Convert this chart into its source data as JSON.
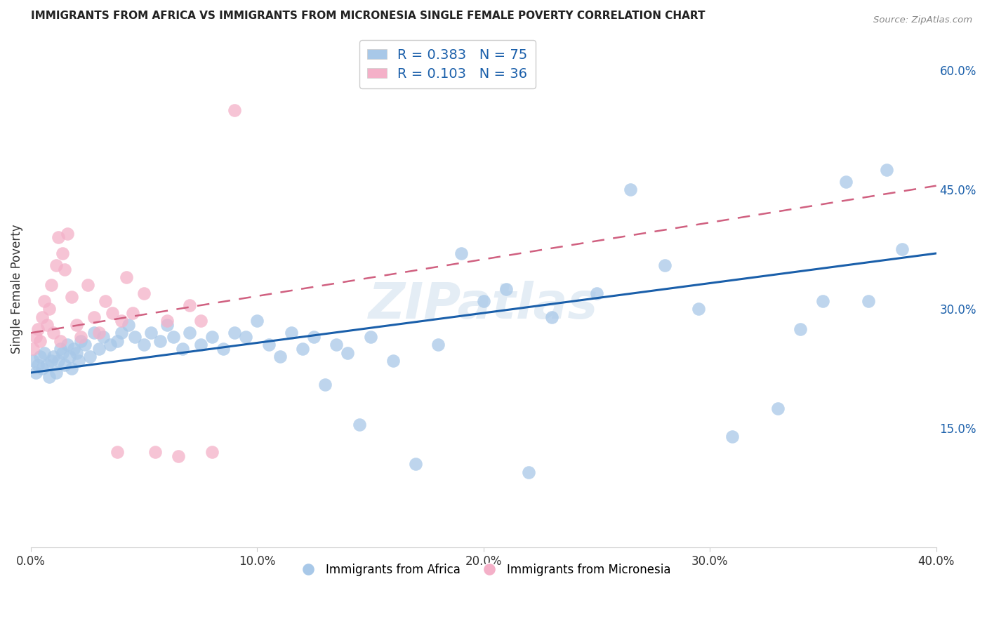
{
  "title": "IMMIGRANTS FROM AFRICA VS IMMIGRANTS FROM MICRONESIA SINGLE FEMALE POVERTY CORRELATION CHART",
  "source": "Source: ZipAtlas.com",
  "ylabel": "Single Female Poverty",
  "xlim": [
    0.0,
    0.4
  ],
  "ylim": [
    0.0,
    0.65
  ],
  "africa_R": 0.383,
  "africa_N": 75,
  "micronesia_R": 0.103,
  "micronesia_N": 36,
  "africa_color": "#a8c8e8",
  "micronesia_color": "#f4b0c8",
  "africa_line_color": "#1a5faa",
  "micronesia_line_color": "#d06080",
  "legend_text_color": "#1a5faa",
  "legend_label_color": "#333333",
  "watermark": "ZIPatlas",
  "africa_x": [
    0.001,
    0.002,
    0.003,
    0.004,
    0.005,
    0.006,
    0.007,
    0.008,
    0.009,
    0.01,
    0.011,
    0.012,
    0.013,
    0.014,
    0.015,
    0.016,
    0.017,
    0.018,
    0.019,
    0.02,
    0.021,
    0.022,
    0.024,
    0.026,
    0.028,
    0.03,
    0.032,
    0.035,
    0.038,
    0.04,
    0.043,
    0.046,
    0.05,
    0.053,
    0.057,
    0.06,
    0.063,
    0.067,
    0.07,
    0.075,
    0.08,
    0.085,
    0.09,
    0.095,
    0.1,
    0.105,
    0.11,
    0.115,
    0.12,
    0.125,
    0.13,
    0.135,
    0.14,
    0.145,
    0.15,
    0.16,
    0.17,
    0.18,
    0.19,
    0.2,
    0.21,
    0.22,
    0.23,
    0.25,
    0.265,
    0.28,
    0.295,
    0.31,
    0.33,
    0.34,
    0.35,
    0.36,
    0.37,
    0.378,
    0.385
  ],
  "africa_y": [
    0.235,
    0.22,
    0.23,
    0.24,
    0.225,
    0.245,
    0.23,
    0.215,
    0.235,
    0.24,
    0.22,
    0.235,
    0.25,
    0.245,
    0.23,
    0.255,
    0.24,
    0.225,
    0.25,
    0.245,
    0.235,
    0.26,
    0.255,
    0.24,
    0.27,
    0.25,
    0.265,
    0.255,
    0.26,
    0.27,
    0.28,
    0.265,
    0.255,
    0.27,
    0.26,
    0.28,
    0.265,
    0.25,
    0.27,
    0.255,
    0.265,
    0.25,
    0.27,
    0.265,
    0.285,
    0.255,
    0.24,
    0.27,
    0.25,
    0.265,
    0.205,
    0.255,
    0.245,
    0.155,
    0.265,
    0.235,
    0.105,
    0.255,
    0.37,
    0.31,
    0.325,
    0.095,
    0.29,
    0.32,
    0.45,
    0.355,
    0.3,
    0.14,
    0.175,
    0.275,
    0.31,
    0.46,
    0.31,
    0.475,
    0.375
  ],
  "micronesia_x": [
    0.001,
    0.002,
    0.003,
    0.004,
    0.005,
    0.006,
    0.007,
    0.008,
    0.009,
    0.01,
    0.011,
    0.012,
    0.013,
    0.014,
    0.015,
    0.016,
    0.018,
    0.02,
    0.022,
    0.025,
    0.028,
    0.03,
    0.033,
    0.036,
    0.038,
    0.04,
    0.042,
    0.045,
    0.05,
    0.055,
    0.06,
    0.065,
    0.07,
    0.075,
    0.08,
    0.09
  ],
  "micronesia_y": [
    0.25,
    0.265,
    0.275,
    0.26,
    0.29,
    0.31,
    0.28,
    0.3,
    0.33,
    0.27,
    0.355,
    0.39,
    0.26,
    0.37,
    0.35,
    0.395,
    0.315,
    0.28,
    0.265,
    0.33,
    0.29,
    0.27,
    0.31,
    0.295,
    0.12,
    0.285,
    0.34,
    0.295,
    0.32,
    0.12,
    0.285,
    0.115,
    0.305,
    0.285,
    0.12,
    0.55
  ],
  "africa_trend": [
    0.22,
    0.37
  ],
  "micronesia_trend": [
    0.27,
    0.455
  ]
}
